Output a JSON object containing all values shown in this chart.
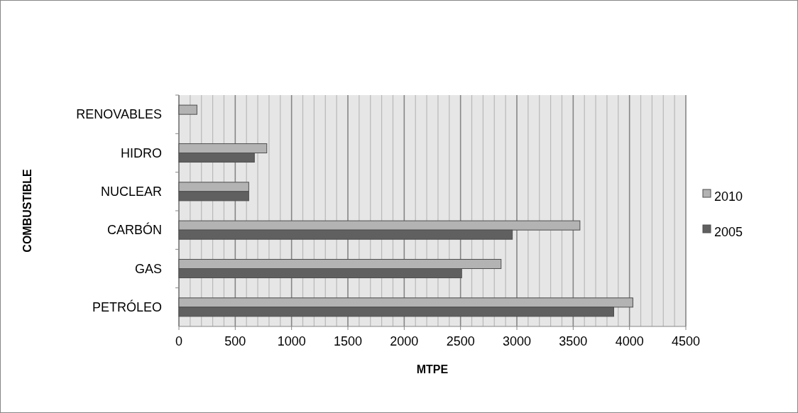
{
  "chart_data": {
    "type": "bar",
    "orientation": "horizontal",
    "xlabel": "MTPE",
    "ylabel": "COMBUSTIBLE",
    "categories": [
      "RENOVABLES",
      "HIDRO",
      "NUCLEAR",
      "CARBÓN",
      "GAS",
      "PETRÓLEO"
    ],
    "series": [
      {
        "name": "2010",
        "color": "#b3b3b3",
        "values": [
          160,
          780,
          620,
          3560,
          2860,
          4030
        ]
      },
      {
        "name": "2005",
        "color": "#606060",
        "values": [
          null,
          670,
          620,
          2960,
          2510,
          3860
        ]
      }
    ],
    "xlim": [
      0,
      4500
    ],
    "xticks": [
      0,
      {
        "value": 100,
        "label": null
      },
      {
        "value": 200,
        "label": null
      },
      {
        "value": 300,
        "label": null
      },
      {
        "value": 400,
        "label": null
      },
      500,
      {
        "value": 600,
        "label": null
      },
      {
        "value": 700,
        "label": null
      },
      {
        "value": 800,
        "label": null
      },
      {
        "value": 900,
        "label": null
      },
      1000,
      {
        "value": 1100,
        "label": null
      },
      {
        "value": 1200,
        "label": null
      },
      {
        "value": 1300,
        "label": null
      },
      {
        "value": 1400,
        "label": null
      },
      1500,
      {
        "value": 1600,
        "label": null
      },
      {
        "value": 1700,
        "label": null
      },
      {
        "value": 1800,
        "label": null
      },
      {
        "value": 1900,
        "label": null
      },
      2000,
      {
        "value": 2100,
        "label": null
      },
      {
        "value": 2200,
        "label": null
      },
      {
        "value": 2300,
        "label": null
      },
      {
        "value": 2400,
        "label": null
      },
      2500,
      {
        "value": 2600,
        "label": null
      },
      {
        "value": 2700,
        "label": null
      },
      {
        "value": 2800,
        "label": null
      },
      {
        "value": 2900,
        "label": null
      },
      3000,
      {
        "value": 3100,
        "label": null
      },
      {
        "value": 3200,
        "label": null
      },
      {
        "value": 3300,
        "label": null
      },
      {
        "value": 3400,
        "label": null
      },
      3500,
      {
        "value": 3600,
        "label": null
      },
      {
        "value": 3700,
        "label": null
      },
      {
        "value": 3800,
        "label": null
      },
      {
        "value": 3900,
        "label": null
      },
      4000,
      {
        "value": 4100,
        "label": null
      },
      {
        "value": 4200,
        "label": null
      },
      {
        "value": 4300,
        "label": null
      },
      {
        "value": 4400,
        "label": null
      },
      4500
    ],
    "grid": "x",
    "legend": "right"
  }
}
